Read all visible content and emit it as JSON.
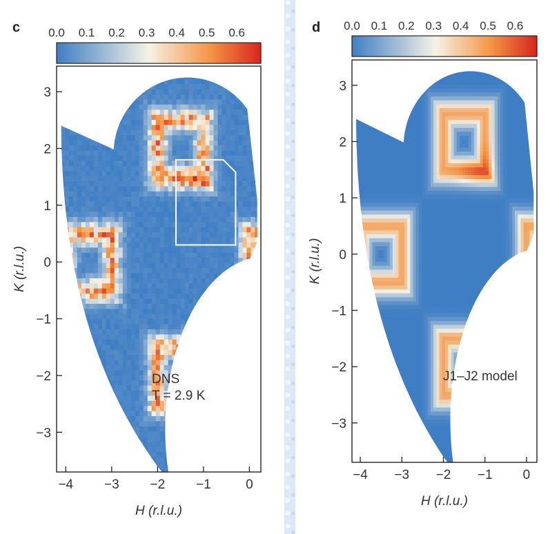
{
  "chart_data": [
    {
      "type": "heatmap",
      "panel_label": "c",
      "xlabel": "H (r.l.u.)",
      "ylabel": "K (r.l.u.)",
      "xlim": [
        -4.2,
        0.25
      ],
      "ylim": [
        -3.7,
        3.45
      ],
      "x_ticks": [
        "−4",
        "−3",
        "−2",
        "−1",
        "0"
      ],
      "y_ticks": [
        "3",
        "2",
        "1",
        "0",
        "−1",
        "−2",
        "−3"
      ],
      "colorbar": {
        "ticks": [
          "0.0",
          "0.1",
          "0.2",
          "0.3",
          "0.4",
          "0.5",
          "0.6"
        ],
        "range": [
          0.0,
          0.68
        ]
      },
      "annotation_lines": [
        "DNS",
        "T = 2.9 K"
      ],
      "highlight_box": {
        "h": [
          -1.6,
          -0.3
        ],
        "k": [
          0.3,
          1.8
        ]
      },
      "colors": {
        "low": "#3f7ec4",
        "mid": "#f4f2e6",
        "high": "#d7261e"
      }
    },
    {
      "type": "heatmap",
      "panel_label": "d",
      "xlabel": "H (r.l.u.)",
      "ylabel": "K (r.l.u.)",
      "xlim": [
        -4.2,
        0.25
      ],
      "ylim": [
        -3.7,
        3.45
      ],
      "x_ticks": [
        "−4",
        "−3",
        "−2",
        "−1",
        "0"
      ],
      "y_ticks": [
        "3",
        "2",
        "1",
        "0",
        "−1",
        "−2",
        "−3"
      ],
      "colorbar": {
        "ticks": [
          "0.0",
          "0.1",
          "0.2",
          "0.3",
          "0.4",
          "0.5",
          "0.6"
        ],
        "range": [
          0.0,
          0.68
        ]
      },
      "annotation_lines": [
        "J1–J2 model"
      ],
      "colors": {
        "low": "#3f7ec4",
        "mid": "#f4f2e6",
        "high": "#d7261e"
      }
    }
  ]
}
